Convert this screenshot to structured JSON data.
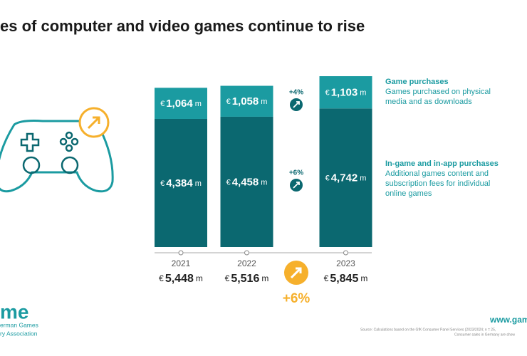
{
  "chart_data": {
    "type": "bar",
    "stacked": true,
    "title": "es of computer and video games continue to rise",
    "categories": [
      "2021",
      "2022",
      "2023"
    ],
    "currency": "€",
    "unit": "m",
    "series": [
      {
        "name": "In-game and in-app purchases",
        "description": [
          "Additional games content and",
          "subscription fees for individual",
          "online games"
        ],
        "color": "#0b6870",
        "values": [
          4384,
          4458,
          4742
        ],
        "value_labels": [
          "4,384",
          "4,458",
          "4,742"
        ],
        "change": "+6%"
      },
      {
        "name": "Game purchases",
        "description": [
          "Games purchased on physical",
          "media and as downloads"
        ],
        "color": "#1b9ba1",
        "values": [
          1064,
          1058,
          1103
        ],
        "value_labels": [
          "1,064",
          "1,058",
          "1,103"
        ],
        "change": "+4%"
      }
    ],
    "totals": [
      5448,
      5516,
      5845
    ],
    "total_labels": [
      "5,448",
      "5,516",
      "5,845"
    ],
    "total_change": "+6%"
  },
  "branding": {
    "logo": "me",
    "logo_lines": [
      "erman Games",
      "ry Association"
    ],
    "website": "www.gam",
    "source_lines": [
      "Source: Calculations based on the GfK Consumer Panel Services (2023/2024; n = 25,",
      "Consumer sales in Germany are show"
    ]
  }
}
